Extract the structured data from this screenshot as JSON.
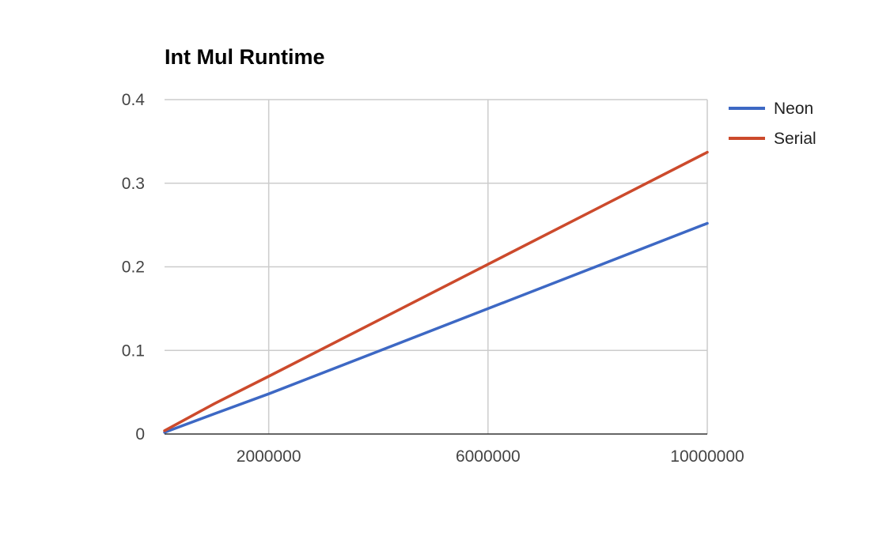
{
  "chart_data": {
    "type": "line",
    "title": "Int Mul Runtime",
    "xlabel": "",
    "ylabel": "",
    "xlim": [
      100000,
      10000000
    ],
    "ylim": [
      0,
      0.4
    ],
    "x_ticks": [
      2000000,
      6000000,
      10000000
    ],
    "x_tick_labels": [
      "2000000",
      "6000000",
      "10000000"
    ],
    "y_ticks": [
      0,
      0.1,
      0.2,
      0.3,
      0.4
    ],
    "y_tick_labels": [
      "0",
      "0.1",
      "0.2",
      "0.3",
      "0.4"
    ],
    "grid": true,
    "legend_position": "right",
    "series": [
      {
        "name": "Neon",
        "color": "#3d68c4",
        "x": [
          100000,
          1000000,
          2000000,
          6000000,
          10000000
        ],
        "y": [
          0.002,
          0.024,
          0.048,
          0.15,
          0.252
        ]
      },
      {
        "name": "Serial",
        "color": "#cc4a2c",
        "x": [
          100000,
          1000000,
          2000000,
          6000000,
          10000000
        ],
        "y": [
          0.004,
          0.036,
          0.069,
          0.203,
          0.337
        ]
      }
    ]
  }
}
